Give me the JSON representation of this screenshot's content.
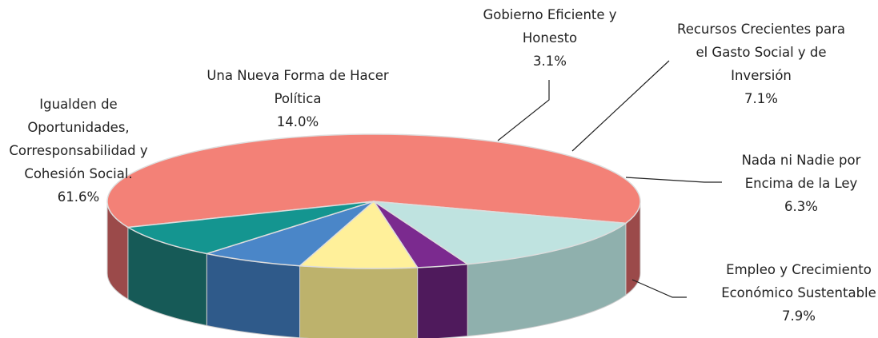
{
  "chart_data": {
    "type": "pie3d",
    "categories": [
      "Igualden de Oportunidades, Corresponsabilidad y Cohesión Social.",
      "Una Nueva Forma de Hacer Política",
      "Gobierno Eficiente y Honesto",
      "Recursos Crecientes para el Gasto Social y de Inversión",
      "Nada ni Nadie por Encima de la Ley",
      "Empleo y Crecimiento Económico Sustentable"
    ],
    "values": [
      61.6,
      14.0,
      3.1,
      7.1,
      6.3,
      7.9
    ],
    "value_labels": [
      "61.6%",
      "14.0%",
      "3.1%",
      "7.1%",
      "6.3%",
      "7.9%"
    ],
    "colors": [
      "#f38177",
      "#bfe3e0",
      "#7b2a8f",
      "#fff09a",
      "#4a86c8",
      "#149590"
    ],
    "side_colors": [
      "#9b4a4a",
      "#8fb0ad",
      "#4f1a5c",
      "#bdb26c",
      "#2f5a8a",
      "#165a57"
    ]
  }
}
